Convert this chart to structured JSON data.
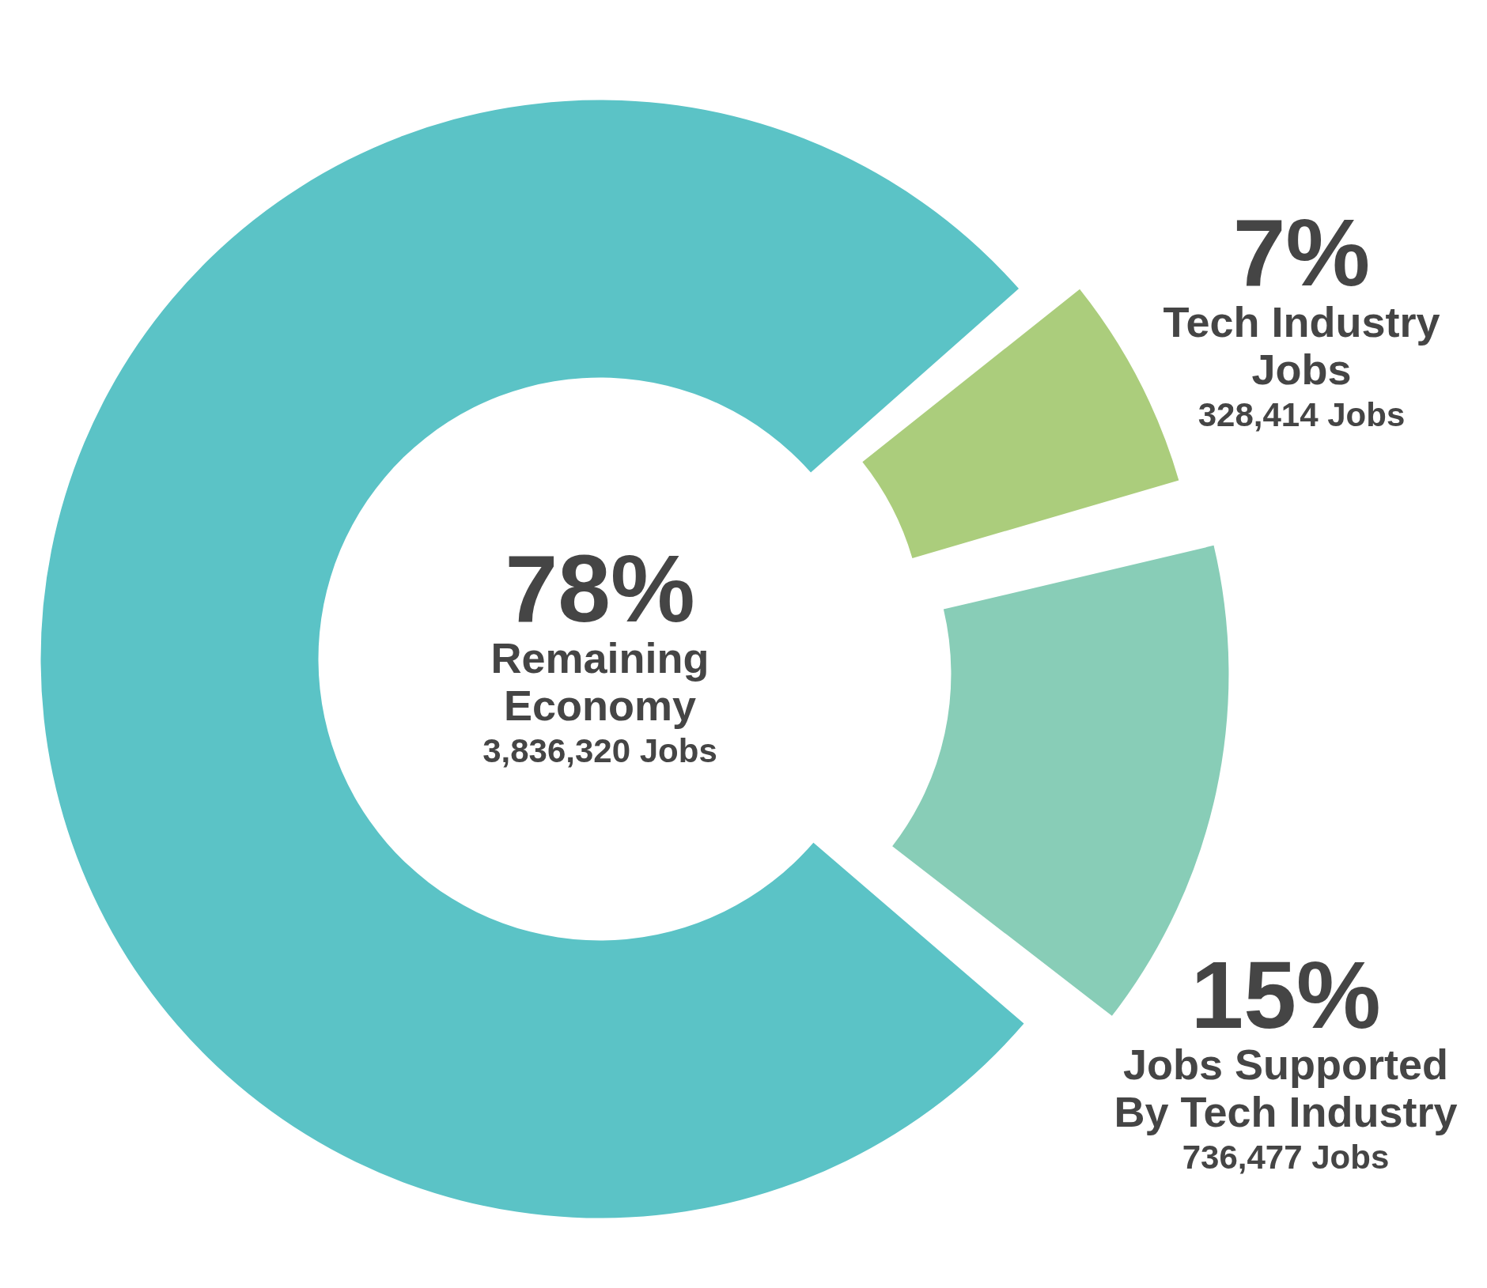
{
  "chart_data": {
    "type": "donut",
    "categories": [
      "Remaining Economy",
      "Tech Industry Jobs",
      "Jobs Supported By Tech Industry"
    ],
    "values": [
      78,
      7,
      15
    ],
    "colors": [
      "#5bc3c6",
      "#abcd7c",
      "#88cdb7"
    ],
    "value_labels": [
      "78%",
      "7%",
      "15%"
    ],
    "annotations": [
      "3,836,320 Jobs",
      "328,414 Jobs",
      "736,477 Jobs"
    ]
  }
}
